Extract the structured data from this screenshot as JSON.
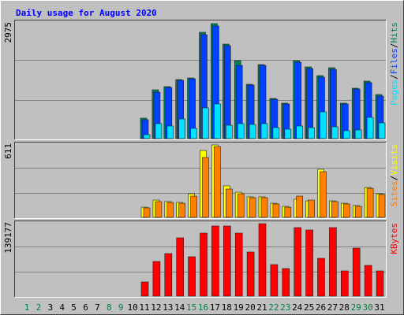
{
  "chart_data": [
    {
      "type": "bar",
      "title": "Daily usage for August 2020",
      "ylim": [
        0,
        2975
      ],
      "yticks": [
        2975
      ],
      "legend_separator": "/",
      "series": [
        {
          "name": "Hits",
          "color": "#008060",
          "values": [
            0,
            0,
            0,
            0,
            0,
            0,
            0,
            0,
            0,
            0,
            530,
            1263,
            1345,
            1528,
            1569,
            2751,
            2975,
            2445,
            2017,
            1406,
            1915,
            1039,
            917,
            2017,
            1854,
            1630,
            1834,
            917,
            1304,
            1488,
            1141
          ]
        },
        {
          "name": "Files",
          "color": "#0040ff",
          "values": [
            0,
            0,
            0,
            0,
            0,
            0,
            0,
            0,
            0,
            0,
            489,
            1202,
            1324,
            1508,
            1549,
            2690,
            2914,
            2405,
            1895,
            1385,
            1895,
            1019,
            897,
            1977,
            1814,
            1589,
            1793,
            897,
            1284,
            1447,
            1100
          ]
        },
        {
          "name": "Pages",
          "color": "#00e0ff",
          "values": [
            0,
            0,
            0,
            0,
            0,
            0,
            0,
            0,
            0,
            0,
            102,
            387,
            326,
            509,
            265,
            795,
            897,
            346,
            387,
            367,
            387,
            285,
            245,
            326,
            285,
            693,
            306,
            204,
            224,
            550,
            408
          ]
        }
      ]
    },
    {
      "type": "bar",
      "ylim": [
        0,
        611
      ],
      "yticks": [
        611
      ],
      "legend_separator": "/",
      "series": [
        {
          "name": "Visits",
          "color": "#ffff00",
          "values": [
            0,
            0,
            0,
            0,
            0,
            0,
            0,
            0,
            0,
            0,
            86,
            146,
            133,
            126,
            199,
            564,
            611,
            266,
            212,
            173,
            173,
            119,
            93,
            153,
            139,
            405,
            139,
            119,
            100,
            252,
            199
          ]
        },
        {
          "name": "Sites",
          "color": "#ff8000",
          "values": [
            0,
            0,
            0,
            0,
            0,
            0,
            0,
            0,
            0,
            0,
            80,
            133,
            126,
            119,
            179,
            505,
            597,
            239,
            199,
            166,
            166,
            113,
            86,
            179,
            146,
            385,
            133,
            113,
            93,
            245,
            193
          ]
        }
      ]
    },
    {
      "type": "bar",
      "ylim": [
        0,
        139177
      ],
      "yticks": [
        139177
      ],
      "categories": [
        1,
        2,
        3,
        4,
        5,
        6,
        7,
        8,
        9,
        10,
        11,
        12,
        13,
        14,
        15,
        16,
        17,
        18,
        19,
        20,
        21,
        22,
        23,
        24,
        25,
        26,
        27,
        28,
        29,
        30,
        31
      ],
      "category_colors": [
        "#008040",
        "#008040",
        "#000000",
        "#000000",
        "#000000",
        "#000000",
        "#000000",
        "#008040",
        "#008040",
        "#000000",
        "#000000",
        "#000000",
        "#000000",
        "#000000",
        "#008040",
        "#008040",
        "#000000",
        "#000000",
        "#000000",
        "#000000",
        "#000000",
        "#008040",
        "#008040",
        "#000000",
        "#000000",
        "#000000",
        "#000000",
        "#000000",
        "#008040",
        "#008040",
        "#000000"
      ],
      "series": [
        {
          "name": "KBytes",
          "color": "#ff0000",
          "values": [
            0,
            0,
            0,
            0,
            0,
            0,
            0,
            0,
            0,
            0,
            27231,
            66563,
            81691,
            111947,
            75640,
            121024,
            134639,
            134639,
            121024,
            84717,
            139177,
            60512,
            52948,
            131614,
            127075,
            72614,
            131614,
            48410,
            92281,
            58998,
            48410
          ]
        }
      ]
    }
  ]
}
